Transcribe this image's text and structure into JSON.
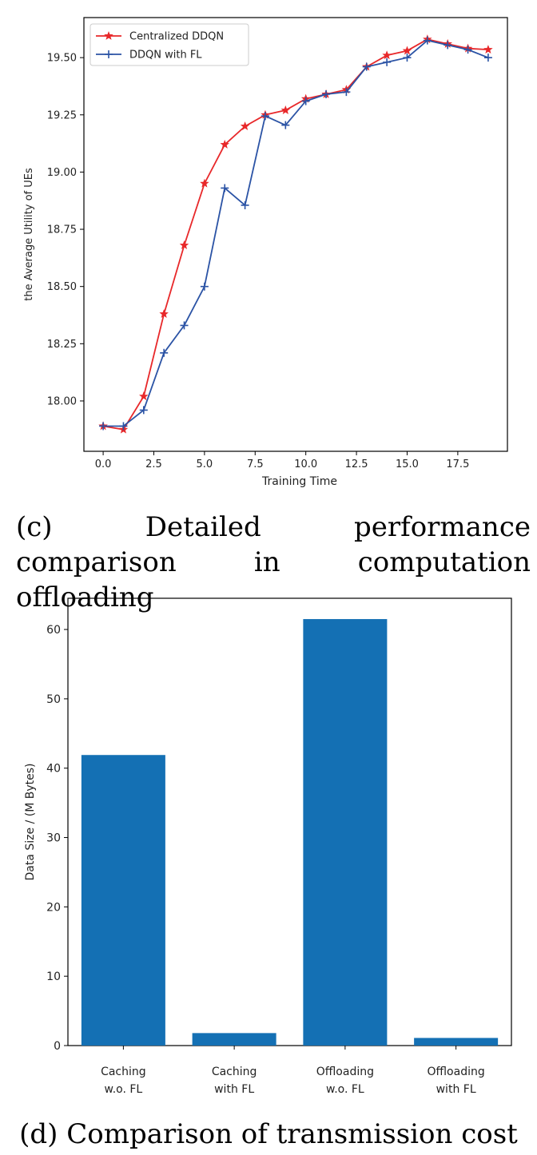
{
  "figures": {
    "c": {
      "caption": "(c) Detailed performance comparison in computation offloading"
    },
    "d": {
      "caption": "(d) Comparison of transmission cost"
    }
  },
  "colors": {
    "red": "#e8282a",
    "blue": "#2b53a5",
    "bar": "#1470b4"
  },
  "chart_data": [
    {
      "type": "line",
      "title": "",
      "xlabel": "Training Time",
      "ylabel": "the Average Utility of UEs",
      "xlim": [
        -0.95,
        19.95
      ],
      "ylim": [
        17.78,
        19.675
      ],
      "xticks": [
        0.0,
        2.5,
        5.0,
        7.5,
        10.0,
        12.5,
        15.0,
        17.5
      ],
      "xtick_labels": [
        "0.0",
        "2.5",
        "5.0",
        "7.5",
        "10.0",
        "12.5",
        "15.0",
        "17.5"
      ],
      "yticks": [
        18.0,
        18.25,
        18.5,
        18.75,
        19.0,
        19.25,
        19.5
      ],
      "ytick_labels": [
        "18.00",
        "18.25",
        "18.50",
        "18.75",
        "19.00",
        "19.25",
        "19.50"
      ],
      "legend": "top-left",
      "x": [
        0,
        1,
        2,
        3,
        4,
        5,
        6,
        7,
        8,
        9,
        10,
        11,
        12,
        13,
        14,
        15,
        16,
        17,
        18,
        19
      ],
      "series": [
        {
          "name": "Centralized DDQN",
          "color": "#e8282a",
          "marker": "star",
          "values": [
            17.89,
            17.875,
            18.02,
            18.38,
            18.68,
            18.95,
            19.12,
            19.2,
            19.25,
            19.27,
            19.32,
            19.34,
            19.36,
            19.46,
            19.51,
            19.53,
            19.58,
            19.56,
            19.54,
            19.535
          ]
        },
        {
          "name": "DDQN with FL",
          "color": "#2b53a5",
          "marker": "plus",
          "values": [
            17.89,
            17.89,
            17.96,
            18.21,
            18.33,
            18.5,
            18.93,
            18.855,
            19.245,
            19.205,
            19.31,
            19.34,
            19.35,
            19.46,
            19.48,
            19.5,
            19.575,
            19.555,
            19.535,
            19.5
          ]
        }
      ]
    },
    {
      "type": "bar",
      "title": "",
      "xlabel": "",
      "ylabel": "Data Size / (M Bytes)",
      "ylim": [
        0,
        64.5
      ],
      "yticks": [
        0,
        10,
        20,
        30,
        40,
        50,
        60
      ],
      "ytick_labels": [
        "0",
        "10",
        "20",
        "30",
        "40",
        "50",
        "60"
      ],
      "categories": [
        [
          "Caching",
          "w.o. FL"
        ],
        [
          "Caching",
          "with FL"
        ],
        [
          "Offloading",
          "w.o. FL"
        ],
        [
          "Offloading",
          "with FL"
        ]
      ],
      "values": [
        41.9,
        1.8,
        61.5,
        1.1
      ],
      "color": "#1470b4"
    }
  ]
}
